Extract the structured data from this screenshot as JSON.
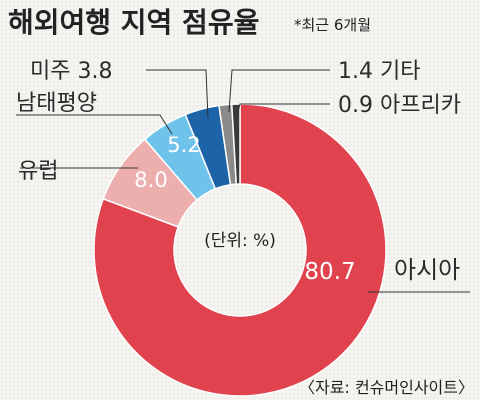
{
  "title": "해외여행 지역 점유율",
  "subtitle": "*최근 6개월",
  "unit": "(단위: %)",
  "source": "〈자료: 컨슈머인사이트〉",
  "chart_data": {
    "type": "pie",
    "style": "donut",
    "slices": [
      {
        "name": "아시아",
        "value": 80.7,
        "color": "#e0434d"
      },
      {
        "name": "유럽",
        "value": 8.0,
        "color": "#edaeae"
      },
      {
        "name": "남태평양",
        "value": 5.2,
        "color": "#6fc3ea"
      },
      {
        "name": "미주",
        "value": 3.8,
        "color": "#1d63a8"
      },
      {
        "name": "기타",
        "value": 1.4,
        "color": "#8a8a8a"
      },
      {
        "name": "아프리카",
        "value": 0.9,
        "color": "#3a3a3a"
      }
    ]
  }
}
